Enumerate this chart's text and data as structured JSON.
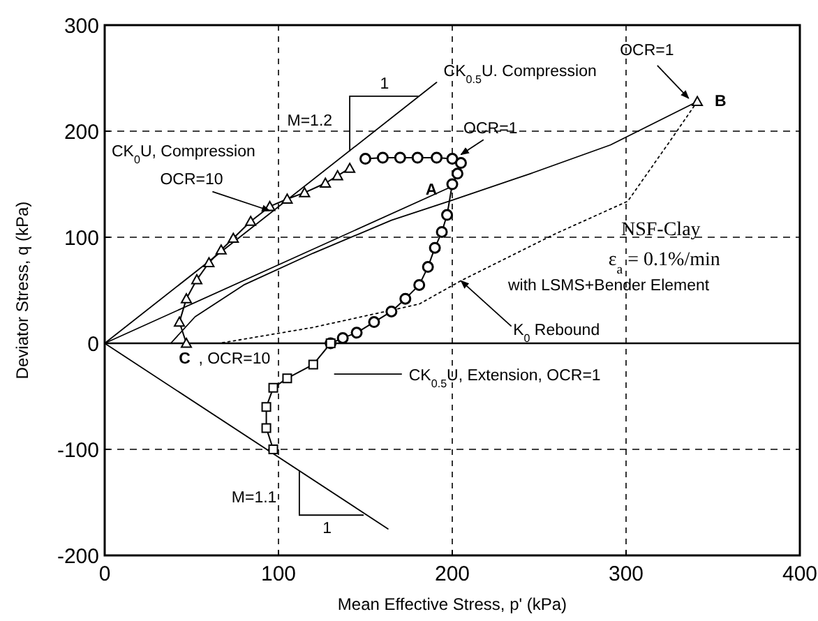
{
  "chart_data": {
    "type": "line",
    "xlabel": "Mean Effective Stress, p' (kPa)",
    "ylabel": "Deviator Stress, q (kPa)",
    "xlim": [
      0,
      400
    ],
    "ylim": [
      -200,
      300
    ],
    "xticks": [
      0,
      100,
      200,
      300,
      400
    ],
    "yticks": [
      -200,
      -100,
      0,
      100,
      200,
      300
    ],
    "grid": true,
    "ref_lines": [
      {
        "axis": "y",
        "value": 0,
        "color": "#000000",
        "line_style": "solid"
      }
    ],
    "series": [
      {
        "color": "#000000",
        "line_style": "solid",
        "marker": "none",
        "x": [
          0,
          191
        ],
        "values": [
          0,
          246
        ]
      },
      {
        "type": "line",
        "color": "#000000",
        "line_style": "solid",
        "marker": "none",
        "x": [
          0,
          163
        ],
        "values": [
          0,
          -175
        ]
      },
      {
        "type": "line",
        "color": "#000000",
        "line_style": "solid",
        "marker": "none",
        "x": [
          0,
          200
        ],
        "values": [
          0,
          148
        ]
      },
      {
        "type": "line",
        "color": "#000000",
        "line_style": "solid",
        "marker": "none",
        "x": [
          38,
          52,
          80,
          120,
          165,
          200,
          245,
          291,
          341
        ],
        "values": [
          0,
          25,
          55,
          85,
          116,
          135,
          160,
          187,
          228
        ]
      },
      {
        "type": "line",
        "color": "#000000",
        "line_style": "dotted",
        "marker": "none",
        "x": [
          341,
          325,
          301,
          259,
          205,
          181,
          120,
          66
        ],
        "values": [
          228,
          190,
          134,
          103,
          59,
          37,
          15,
          0
        ]
      },
      {
        "type": "line",
        "color": "#000000",
        "line_style": "solid",
        "marker": "triangle",
        "x": [
          47,
          43,
          47,
          53,
          60,
          67,
          74,
          84,
          95,
          105,
          115,
          127,
          134,
          141
        ],
        "values": [
          0,
          20,
          42,
          60,
          76,
          88,
          99,
          115,
          129,
          136,
          142,
          151,
          158,
          165
        ]
      },
      {
        "type": "line",
        "color": "#000000",
        "line_style": "solid",
        "marker": "circle",
        "x": [
          150,
          160,
          170,
          180,
          191,
          200,
          205,
          203,
          200,
          197,
          194,
          190,
          186,
          181,
          173,
          165,
          155,
          145,
          137,
          130
        ],
        "values": [
          174,
          175,
          175,
          175,
          175,
          174,
          170,
          160,
          150,
          121,
          105,
          90,
          72,
          55,
          42,
          30,
          20,
          10,
          5,
          0
        ]
      },
      {
        "color": "#000000",
        "line_style": "solid",
        "marker": "square",
        "x": [
          130,
          120,
          105,
          97,
          93,
          93,
          97
        ],
        "values": [
          0,
          -20,
          -33,
          -42,
          -60,
          -80,
          -100
        ]
      },
      {
        "type": "scatter",
        "color": "#000000",
        "marker": "triangle",
        "x": [
          341
        ],
        "values": [
          228
        ]
      }
    ],
    "annotations": [
      {
        "text": "CK$_{0.5}$U. Compression",
        "x": 191,
        "y": 246
      },
      "M=1.2",
      "1",
      "CK$_{0}$U, Compression",
      {
        "text": "OCR=10",
        "x": 95,
        "y": 125
      },
      {
        "text": "OCR=1",
        "x": 205,
        "y": 178
      },
      {
        "text": "OCR=1",
        "x": 336,
        "y": 231
      },
      "A",
      "B",
      "C",
      ", OCR=10",
      "NSF-Clay",
      "ε$_{a}$ = 0.1%/min",
      "with LSMS+Bender Element",
      {
        "text": "K$_{0}$ Rebound",
        "x": 205,
        "y": 59
      },
      "CK$_{0.5}$U, Extension, OCR=1",
      "M=1.1",
      "1"
    ]
  }
}
